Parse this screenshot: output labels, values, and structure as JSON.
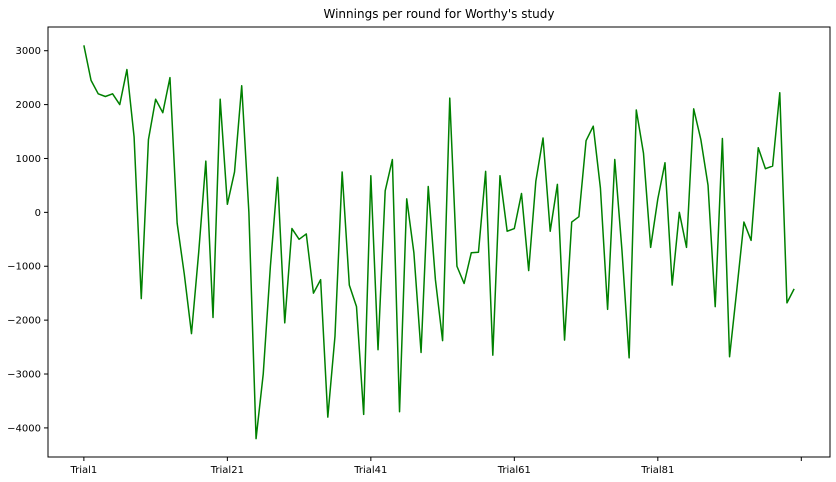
{
  "chart_data": {
    "type": "line",
    "title": "Winnings per round for Worthy's study",
    "xlabel": "",
    "ylabel": "",
    "series": [
      {
        "color": "#008000",
        "values": [
          3100,
          2450,
          2200,
          2150,
          2200,
          2000,
          2650,
          1400,
          -1600,
          1350,
          2100,
          1850,
          2500,
          -200,
          -1150,
          -2250,
          -750,
          950,
          -1950,
          2100,
          150,
          750,
          2350,
          0,
          -4200,
          -3000,
          -1000,
          650,
          -2050,
          -300,
          -500,
          -400,
          -1500,
          -1250,
          -3800,
          -2300,
          750,
          -1350,
          -1750,
          -3750,
          680,
          -2550,
          400,
          980,
          -3700,
          250,
          -750,
          -2600,
          480,
          -1250,
          -2380,
          2120,
          -1000,
          -1320,
          -750,
          -740,
          760,
          -2650,
          680,
          -350,
          -300,
          350,
          -1080,
          580,
          1380,
          -350,
          520,
          -2370,
          -180,
          -80,
          1330,
          1600,
          450,
          -1800,
          980,
          -700,
          -2700,
          1900,
          1100,
          -650,
          250,
          920,
          -1350,
          0,
          -650,
          1920,
          1350,
          500,
          -1750,
          1370,
          -2680,
          -1450,
          -180,
          -520,
          1200,
          810,
          860,
          2220,
          -1680,
          -1420
        ]
      }
    ],
    "x_tick_labels": [
      "Trial1",
      "Trial21",
      "Trial41",
      "Trial61",
      "Trial81",
      ""
    ],
    "x_tick_positions": [
      0,
      20,
      40,
      60,
      80,
      100
    ],
    "yticks": [
      3000,
      2000,
      1000,
      0,
      -1000,
      -2000,
      -3000,
      -4000
    ],
    "y_tick_labels": [
      "3000",
      "2000",
      "1000",
      "0",
      "−1000",
      "−2000",
      "−3000",
      "−4000"
    ],
    "xlim": [
      -5,
      104
    ],
    "ylim": [
      -4540,
      3440
    ],
    "grid": false,
    "legend": "none"
  }
}
